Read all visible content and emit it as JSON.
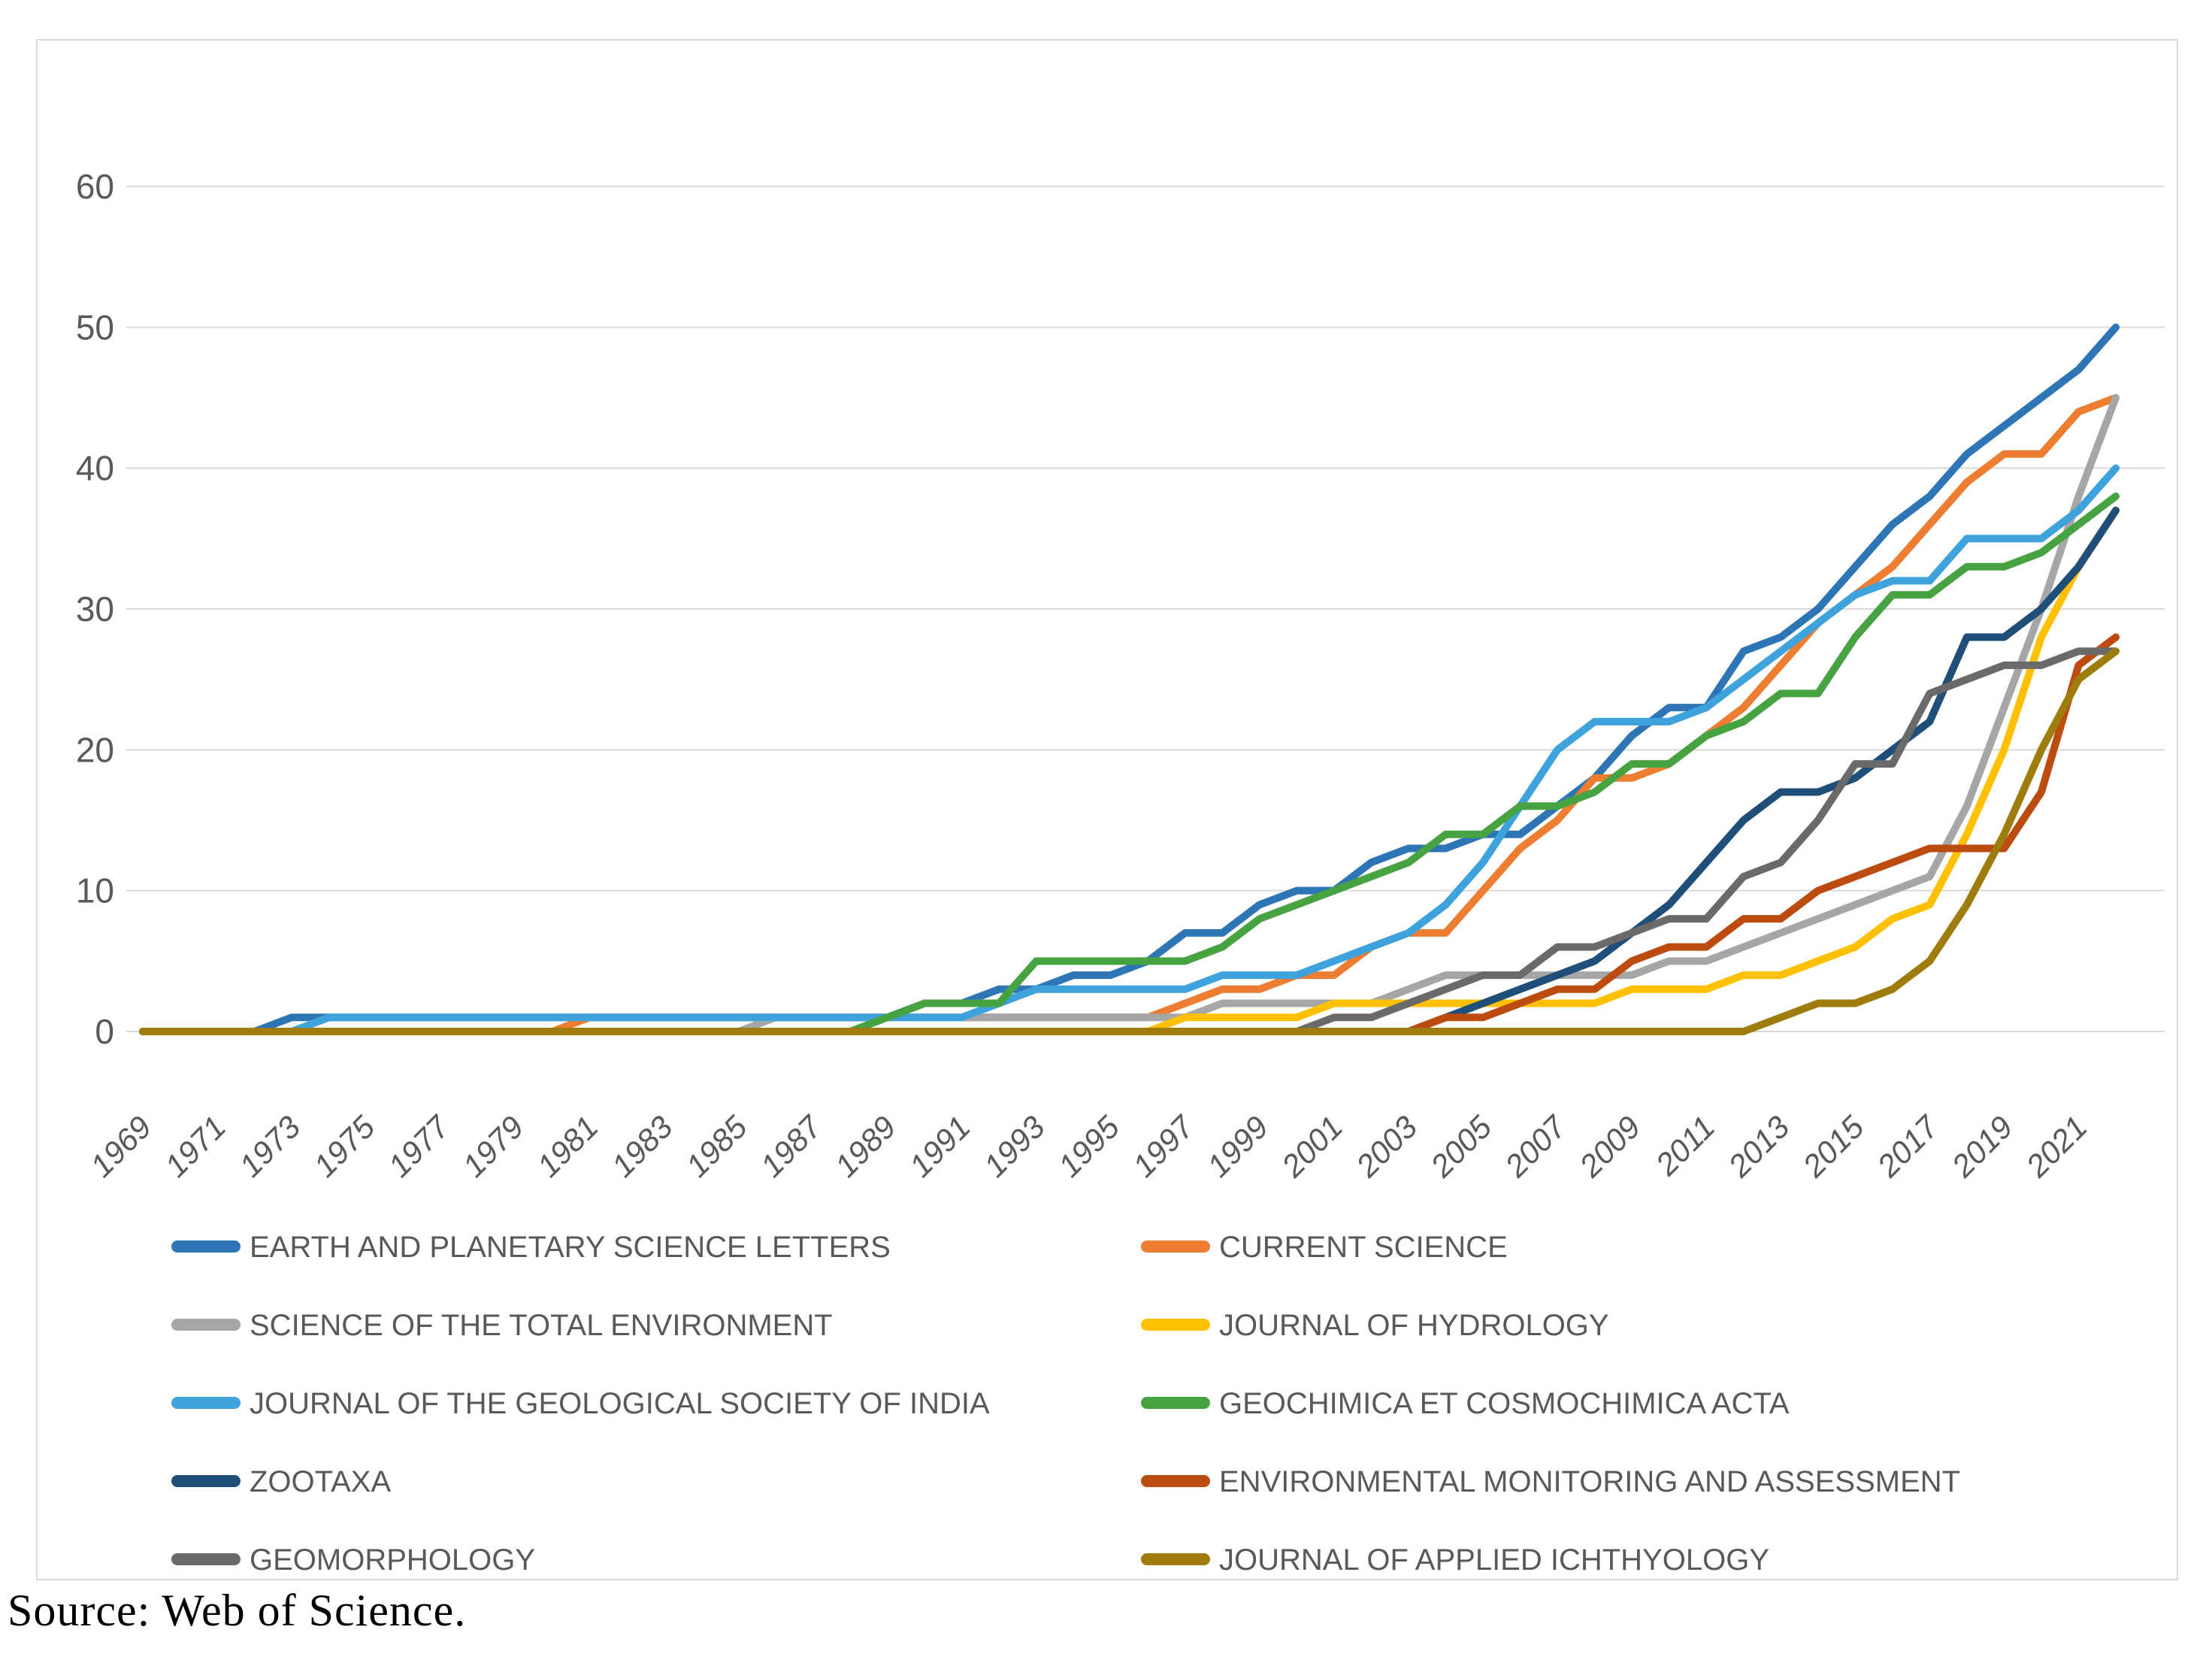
{
  "source_text": "Source: Web of Science.",
  "ui": {
    "background": "#ffffff",
    "frame_border": "#D9D9D9",
    "grid_color": "#D9D9D9",
    "axis_text_color": "#595959"
  },
  "chart_data": {
    "type": "line",
    "title": "",
    "xlabel": "",
    "ylabel": "",
    "ylim": [
      0,
      60
    ],
    "yticks": [
      0,
      10,
      20,
      30,
      40,
      50,
      60
    ],
    "grid": true,
    "legend_position": "bottom-two-columns",
    "x": [
      1969,
      1970,
      1971,
      1972,
      1973,
      1974,
      1975,
      1976,
      1977,
      1978,
      1979,
      1980,
      1981,
      1982,
      1983,
      1984,
      1985,
      1986,
      1987,
      1988,
      1989,
      1990,
      1991,
      1992,
      1993,
      1994,
      1995,
      1996,
      1997,
      1998,
      1999,
      2000,
      2001,
      2002,
      2003,
      2004,
      2005,
      2006,
      2007,
      2008,
      2009,
      2010,
      2011,
      2012,
      2013,
      2014,
      2015,
      2016,
      2017,
      2018,
      2019,
      2020,
      2021,
      2022
    ],
    "x_tick_labels": [
      "1969",
      "1971",
      "1973",
      "1975",
      "1977",
      "1979",
      "1981",
      "1983",
      "1985",
      "1987",
      "1989",
      "1991",
      "1993",
      "1995",
      "1997",
      "1999",
      "2001",
      "2003",
      "2005",
      "2007",
      "2009",
      "2011",
      "2013",
      "2015",
      "2017",
      "2019",
      "2021"
    ],
    "series": [
      {
        "name": "EARTH AND PLANETARY SCIENCE LETTERS",
        "color": "#2E75B6",
        "values": [
          0,
          0,
          0,
          0,
          1,
          1,
          1,
          1,
          1,
          1,
          1,
          1,
          1,
          1,
          1,
          1,
          1,
          1,
          1,
          1,
          1,
          2,
          2,
          3,
          3,
          4,
          4,
          5,
          7,
          7,
          9,
          10,
          10,
          12,
          13,
          13,
          14,
          14,
          16,
          18,
          21,
          23,
          23,
          27,
          28,
          30,
          33,
          36,
          38,
          41,
          43,
          45,
          47,
          50
        ]
      },
      {
        "name": "CURRENT SCIENCE",
        "color": "#ED7D31",
        "values": [
          0,
          0,
          0,
          0,
          0,
          0,
          0,
          0,
          0,
          0,
          0,
          0,
          1,
          1,
          1,
          1,
          1,
          1,
          1,
          1,
          1,
          1,
          1,
          1,
          1,
          1,
          1,
          1,
          2,
          3,
          3,
          4,
          4,
          6,
          7,
          7,
          10,
          13,
          15,
          18,
          18,
          19,
          21,
          23,
          26,
          29,
          31,
          33,
          36,
          39,
          41,
          41,
          44,
          45
        ]
      },
      {
        "name": "SCIENCE OF THE TOTAL ENVIRONMENT",
        "color": "#A6A6A6",
        "values": [
          0,
          0,
          0,
          0,
          0,
          0,
          0,
          0,
          0,
          0,
          0,
          0,
          0,
          0,
          0,
          0,
          0,
          1,
          1,
          1,
          1,
          1,
          1,
          1,
          1,
          1,
          1,
          1,
          1,
          2,
          2,
          2,
          2,
          2,
          3,
          4,
          4,
          4,
          4,
          4,
          4,
          5,
          5,
          6,
          7,
          8,
          9,
          10,
          11,
          16,
          23,
          30,
          38,
          45
        ]
      },
      {
        "name": "JOURNAL OF HYDROLOGY",
        "color": "#FFC000",
        "values": [
          0,
          0,
          0,
          0,
          0,
          0,
          0,
          0,
          0,
          0,
          0,
          0,
          0,
          0,
          0,
          0,
          0,
          0,
          0,
          0,
          0,
          0,
          0,
          0,
          0,
          0,
          0,
          0,
          1,
          1,
          1,
          1,
          2,
          2,
          2,
          2,
          2,
          2,
          2,
          2,
          3,
          3,
          3,
          4,
          4,
          5,
          6,
          8,
          9,
          14,
          20,
          28,
          33,
          37
        ]
      },
      {
        "name": "JOURNAL OF THE GEOLOGICAL SOCIETY OF INDIA",
        "color": "#3EA3DC",
        "values": [
          0,
          0,
          0,
          0,
          0,
          1,
          1,
          1,
          1,
          1,
          1,
          1,
          1,
          1,
          1,
          1,
          1,
          1,
          1,
          1,
          1,
          1,
          1,
          2,
          3,
          3,
          3,
          3,
          3,
          4,
          4,
          4,
          5,
          6,
          7,
          9,
          12,
          16,
          20,
          22,
          22,
          22,
          23,
          25,
          27,
          29,
          31,
          32,
          32,
          35,
          35,
          35,
          37,
          40
        ]
      },
      {
        "name": "GEOCHIMICA ET COSMOCHIMICA ACTA",
        "color": "#47A341",
        "values": [
          0,
          0,
          0,
          0,
          0,
          0,
          0,
          0,
          0,
          0,
          0,
          0,
          0,
          0,
          0,
          0,
          0,
          0,
          0,
          0,
          1,
          2,
          2,
          2,
          5,
          5,
          5,
          5,
          5,
          6,
          8,
          9,
          10,
          11,
          12,
          14,
          14,
          16,
          16,
          17,
          19,
          19,
          21,
          22,
          24,
          24,
          28,
          31,
          31,
          33,
          33,
          34,
          36,
          38
        ]
      },
      {
        "name": "ZOOTAXA",
        "color": "#1F4E79",
        "values": [
          0,
          0,
          0,
          0,
          0,
          0,
          0,
          0,
          0,
          0,
          0,
          0,
          0,
          0,
          0,
          0,
          0,
          0,
          0,
          0,
          0,
          0,
          0,
          0,
          0,
          0,
          0,
          0,
          0,
          0,
          0,
          0,
          0,
          0,
          0,
          1,
          2,
          3,
          4,
          5,
          7,
          9,
          12,
          15,
          17,
          17,
          18,
          20,
          22,
          28,
          28,
          30,
          33,
          37
        ]
      },
      {
        "name": "ENVIRONMENTAL MONITORING AND ASSESSMENT",
        "color": "#BC4B10",
        "values": [
          0,
          0,
          0,
          0,
          0,
          0,
          0,
          0,
          0,
          0,
          0,
          0,
          0,
          0,
          0,
          0,
          0,
          0,
          0,
          0,
          0,
          0,
          0,
          0,
          0,
          0,
          0,
          0,
          0,
          0,
          0,
          0,
          0,
          0,
          0,
          1,
          1,
          2,
          3,
          3,
          5,
          6,
          6,
          8,
          8,
          10,
          11,
          12,
          13,
          13,
          13,
          17,
          26,
          28
        ]
      },
      {
        "name": "GEOMORPHOLOGY",
        "color": "#6A6A6A",
        "values": [
          0,
          0,
          0,
          0,
          0,
          0,
          0,
          0,
          0,
          0,
          0,
          0,
          0,
          0,
          0,
          0,
          0,
          0,
          0,
          0,
          0,
          0,
          0,
          0,
          0,
          0,
          0,
          0,
          0,
          0,
          0,
          0,
          1,
          1,
          2,
          3,
          4,
          4,
          6,
          6,
          7,
          8,
          8,
          11,
          12,
          15,
          19,
          19,
          24,
          25,
          26,
          26,
          27,
          27
        ]
      },
      {
        "name": "JOURNAL OF APPLIED ICHTHYOLOGY",
        "color": "#9E7C0D",
        "values": [
          0,
          0,
          0,
          0,
          0,
          0,
          0,
          0,
          0,
          0,
          0,
          0,
          0,
          0,
          0,
          0,
          0,
          0,
          0,
          0,
          0,
          0,
          0,
          0,
          0,
          0,
          0,
          0,
          0,
          0,
          0,
          0,
          0,
          0,
          0,
          0,
          0,
          0,
          0,
          0,
          0,
          0,
          0,
          0,
          1,
          2,
          2,
          3,
          5,
          9,
          14,
          20,
          25,
          27
        ]
      }
    ]
  }
}
